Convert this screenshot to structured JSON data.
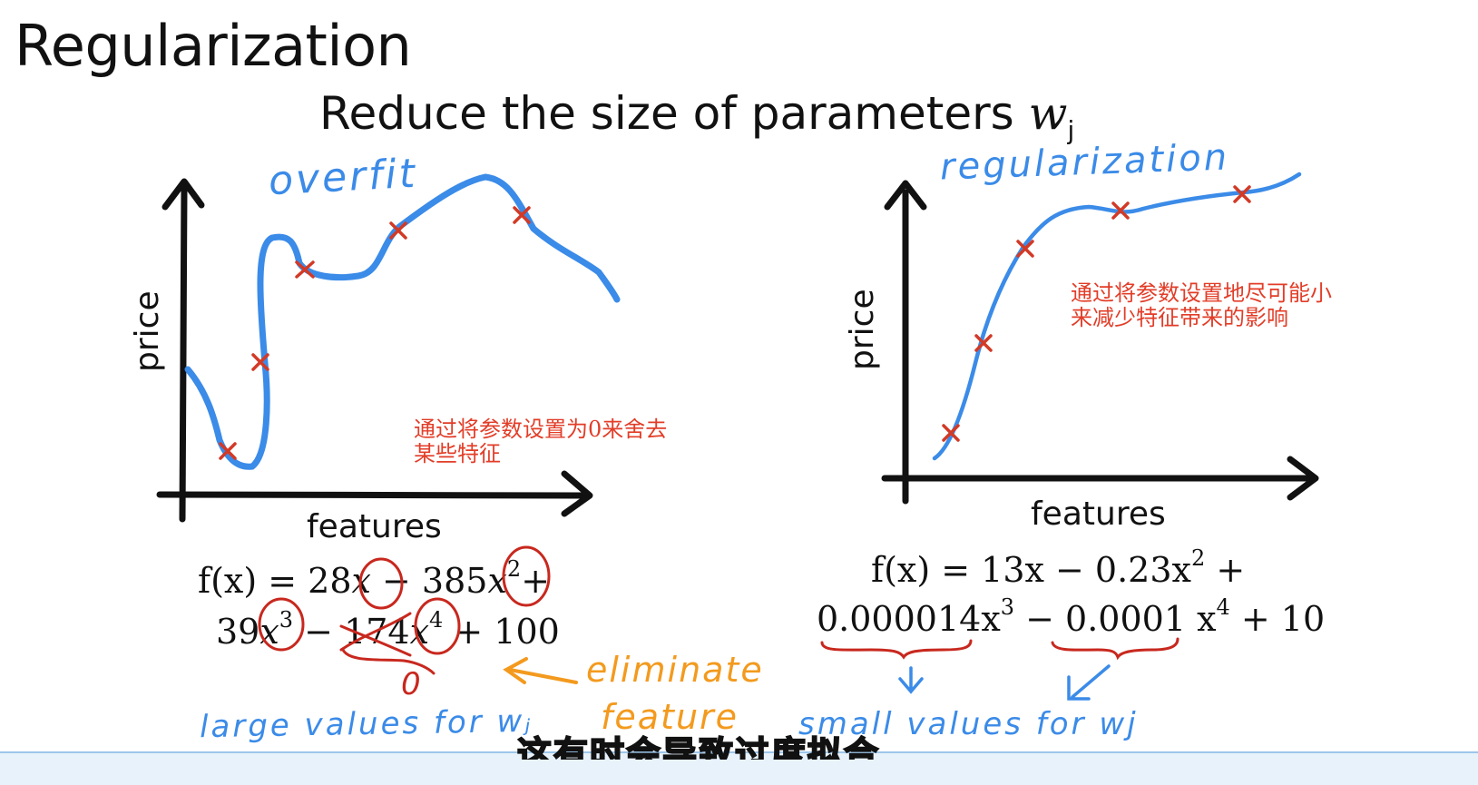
{
  "title": "Regularization",
  "subtitle": {
    "text": "Reduce the size of parameters ",
    "w": "w",
    "sub": "j"
  },
  "left": {
    "ylabel": "price",
    "xlabel": "features",
    "handwritten": "overfit",
    "note_lines": [
      "通过将参数设置为0来舍去",
      "某些特征"
    ],
    "eq_line1": {
      "prefix": "f(x) = 28",
      "x": "x",
      "mid": " − 385",
      "x2": "x",
      "pow2": "2",
      "suffix": "+"
    },
    "eq_line2": {
      "c1": "39",
      "x3": "x",
      "pow3": "3",
      "minus": " − ",
      "c2": "174",
      "x4": "x",
      "pow4": "4",
      "tail": " + 100"
    },
    "zero": "0",
    "eliminate": "eliminate",
    "feature": "feature",
    "large_values": "large values for wⱼ"
  },
  "right": {
    "ylabel": "price",
    "xlabel": "features",
    "handwritten": "regularization",
    "note_lines": [
      "通过将参数设置地尽可能小",
      "来减少特征带来的影响"
    ],
    "eq_line1": {
      "text": "f(x) = 13x − 0.23x",
      "pow": "2",
      "tail": " +"
    },
    "eq_line2": {
      "a": "0.000014x",
      "pa": "3",
      "b": " − 0.0001 x",
      "pb": "4",
      "c": " + 10"
    },
    "small_values": "small values for wj"
  },
  "caption": "这有时会导致过度拟合",
  "colors": {
    "marker": "#d23a26",
    "curve": "#3b8be8",
    "note": "#e23d28",
    "annotation": "#f39a1e",
    "circle": "#c8281e"
  }
}
